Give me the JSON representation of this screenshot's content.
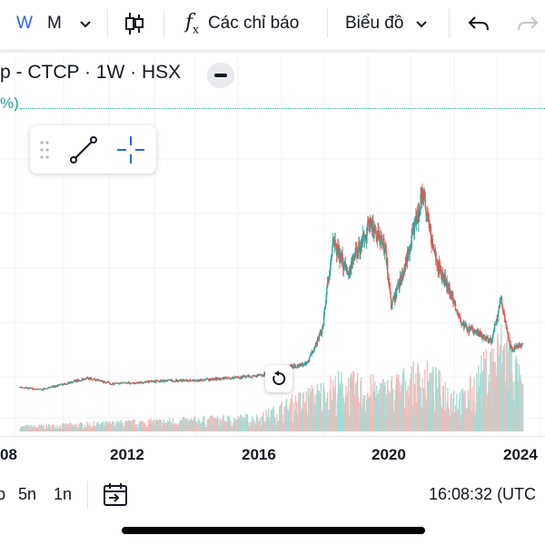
{
  "toolbar": {
    "interval_week": "W",
    "interval_month": "M",
    "indicators_label": "Các chỉ báo",
    "chart_type_label": "Biểu đồ"
  },
  "legend": {
    "title": "p - CTCP · 1W · HSX",
    "change_pct": "%)"
  },
  "colors": {
    "up": "#26a69a",
    "down": "#ef5350",
    "accent": "#2962ff",
    "volume_up": "#a7d9d3",
    "volume_down": "#f7b9b8"
  },
  "chart_data": {
    "type": "candlestick",
    "interval": "1W",
    "x_tick_labels": [
      "08",
      "2012",
      "2016",
      "2020",
      "2024"
    ],
    "price_path": [
      [
        2008.3,
        0.45
      ],
      [
        2009.0,
        0.4
      ],
      [
        2009.8,
        0.57
      ],
      [
        2010.5,
        0.71
      ],
      [
        2011.2,
        0.56
      ],
      [
        2012.0,
        0.58
      ],
      [
        2013.0,
        0.64
      ],
      [
        2014.0,
        0.65
      ],
      [
        2015.0,
        0.71
      ],
      [
        2016.0,
        0.78
      ],
      [
        2016.5,
        0.95
      ],
      [
        2017.5,
        1.1
      ],
      [
        2018.0,
        2.1
      ],
      [
        2018.3,
        4.4
      ],
      [
        2018.8,
        3.6
      ],
      [
        2019.5,
        4.9
      ],
      [
        2020.0,
        4.2
      ],
      [
        2020.2,
        2.6
      ],
      [
        2020.8,
        4.3
      ],
      [
        2021.2,
        5.8
      ],
      [
        2021.6,
        3.9
      ],
      [
        2022.0,
        3.2
      ],
      [
        2022.5,
        2.1
      ],
      [
        2023.0,
        1.9
      ],
      [
        2023.4,
        1.7
      ],
      [
        2023.7,
        2.9
      ],
      [
        2024.0,
        1.5
      ],
      [
        2024.4,
        1.6
      ]
    ],
    "volume_path": [
      [
        2008.3,
        0.05
      ],
      [
        2012.0,
        0.1
      ],
      [
        2016.0,
        0.15
      ],
      [
        2017.0,
        0.3
      ],
      [
        2018.5,
        0.5
      ],
      [
        2020.0,
        0.45
      ],
      [
        2021.2,
        0.6
      ],
      [
        2022.5,
        0.35
      ],
      [
        2023.9,
        1.0
      ],
      [
        2024.4,
        0.4
      ]
    ]
  },
  "bottom": {
    "range_partial": "p",
    "range_5y": "5n",
    "range_1y": "1n",
    "time": "16:08:32 (UTC"
  }
}
